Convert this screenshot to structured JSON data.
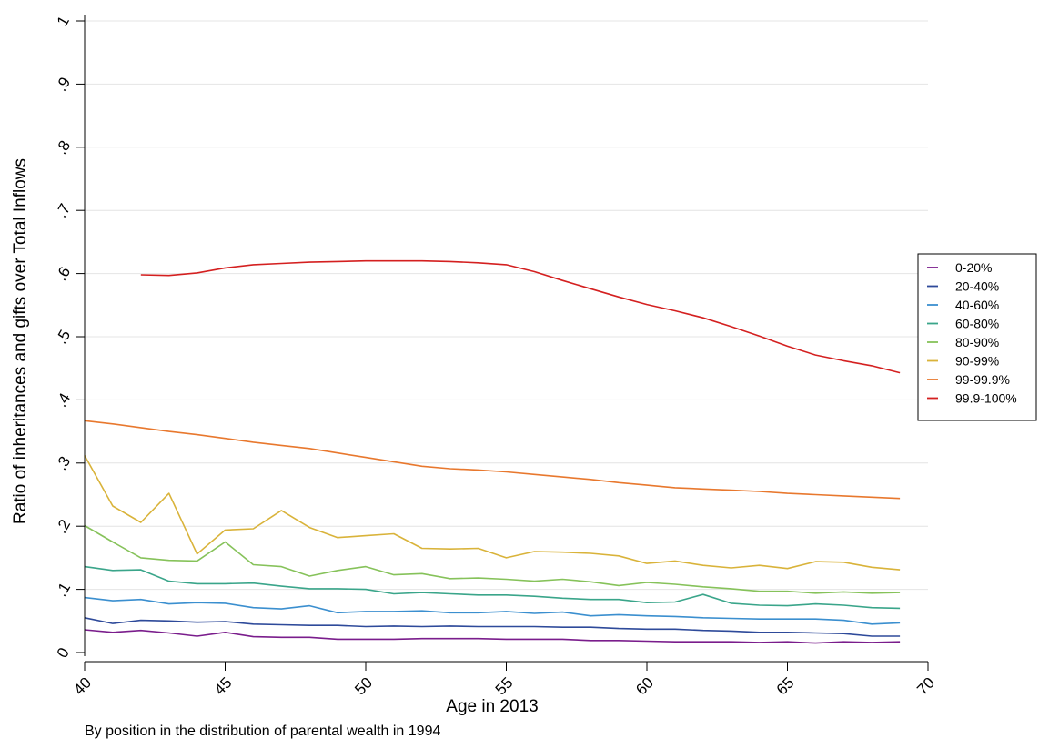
{
  "chart_data": {
    "type": "line",
    "xlabel": "Age in 2013",
    "ylabel": "Ratio of inheritances and gifts over Total Inflows",
    "note": "By position in the distribution of parental wealth in 1994",
    "xlim": [
      40,
      70
    ],
    "ylim": [
      0,
      1
    ],
    "xticks": [
      "40",
      "45",
      "50",
      "55",
      "60",
      "65",
      "70"
    ],
    "yticks": [
      "0",
      ".1",
      ".2",
      ".3",
      ".4",
      ".5",
      ".6",
      ".7",
      ".8",
      ".9",
      "1"
    ],
    "grid": "horizontal",
    "legend_position": "right",
    "series": [
      {
        "name": "0-20%",
        "color": "#7a1d8c",
        "x_start": 40,
        "values": [
          0.036,
          0.032,
          0.035,
          0.031,
          0.026,
          0.032,
          0.025,
          0.024,
          0.024,
          0.021,
          0.021,
          0.021,
          0.022,
          0.022,
          0.022,
          0.021,
          0.021,
          0.021,
          0.019,
          0.019,
          0.018,
          0.017,
          0.017,
          0.017,
          0.016,
          0.017,
          0.015,
          0.017,
          0.016,
          0.017
        ]
      },
      {
        "name": "20-40%",
        "color": "#2e4a9a",
        "x_start": 40,
        "values": [
          0.055,
          0.046,
          0.051,
          0.05,
          0.048,
          0.049,
          0.045,
          0.044,
          0.043,
          0.043,
          0.041,
          0.042,
          0.041,
          0.042,
          0.041,
          0.041,
          0.041,
          0.04,
          0.04,
          0.038,
          0.037,
          0.037,
          0.035,
          0.034,
          0.032,
          0.032,
          0.031,
          0.03,
          0.026,
          0.026
        ]
      },
      {
        "name": "40-60%",
        "color": "#3b8fcf",
        "x_start": 40,
        "values": [
          0.087,
          0.082,
          0.084,
          0.077,
          0.079,
          0.078,
          0.071,
          0.069,
          0.074,
          0.063,
          0.065,
          0.065,
          0.066,
          0.063,
          0.063,
          0.065,
          0.062,
          0.064,
          0.058,
          0.06,
          0.058,
          0.057,
          0.055,
          0.054,
          0.053,
          0.053,
          0.053,
          0.051,
          0.045,
          0.047
        ]
      },
      {
        "name": "60-80%",
        "color": "#3aa58a",
        "x_start": 40,
        "values": [
          0.136,
          0.13,
          0.131,
          0.113,
          0.109,
          0.109,
          0.11,
          0.105,
          0.101,
          0.101,
          0.1,
          0.093,
          0.095,
          0.093,
          0.091,
          0.091,
          0.089,
          0.086,
          0.084,
          0.084,
          0.079,
          0.08,
          0.092,
          0.078,
          0.075,
          0.074,
          0.077,
          0.075,
          0.071,
          0.07
        ]
      },
      {
        "name": "80-90%",
        "color": "#86c25a",
        "x_start": 40,
        "values": [
          0.201,
          0.175,
          0.15,
          0.146,
          0.145,
          0.175,
          0.139,
          0.136,
          0.121,
          0.13,
          0.136,
          0.123,
          0.125,
          0.117,
          0.118,
          0.116,
          0.113,
          0.116,
          0.112,
          0.106,
          0.111,
          0.108,
          0.104,
          0.101,
          0.097,
          0.097,
          0.094,
          0.096,
          0.094,
          0.095
        ]
      },
      {
        "name": "90-99%",
        "color": "#d9b33a",
        "x_start": 40,
        "values": [
          0.312,
          0.232,
          0.206,
          0.252,
          0.156,
          0.194,
          0.196,
          0.225,
          0.198,
          0.182,
          0.185,
          0.188,
          0.165,
          0.164,
          0.165,
          0.15,
          0.16,
          0.159,
          0.157,
          0.153,
          0.141,
          0.145,
          0.138,
          0.134,
          0.138,
          0.133,
          0.144,
          0.143,
          0.135,
          0.131
        ]
      },
      {
        "name": "99-99.9%",
        "color": "#e8782e",
        "x_start": 40,
        "values": [
          0.367,
          0.362,
          0.356,
          0.35,
          0.345,
          0.339,
          0.333,
          0.328,
          0.323,
          0.316,
          0.309,
          0.302,
          0.295,
          0.291,
          0.289,
          0.286,
          0.282,
          0.278,
          0.274,
          0.269,
          0.265,
          0.261,
          0.259,
          0.257,
          0.255,
          0.252,
          0.25,
          0.248,
          0.246,
          0.244
        ]
      },
      {
        "name": "99.9-100%",
        "color": "#d42020",
        "x_start": 42,
        "values": [
          0.598,
          0.597,
          0.601,
          0.609,
          0.614,
          0.616,
          0.618,
          0.619,
          0.62,
          0.62,
          0.62,
          0.619,
          0.617,
          0.614,
          0.603,
          0.589,
          0.576,
          0.563,
          0.551,
          0.541,
          0.53,
          0.516,
          0.501,
          0.485,
          0.471,
          0.462,
          0.454,
          0.443
        ]
      }
    ]
  }
}
